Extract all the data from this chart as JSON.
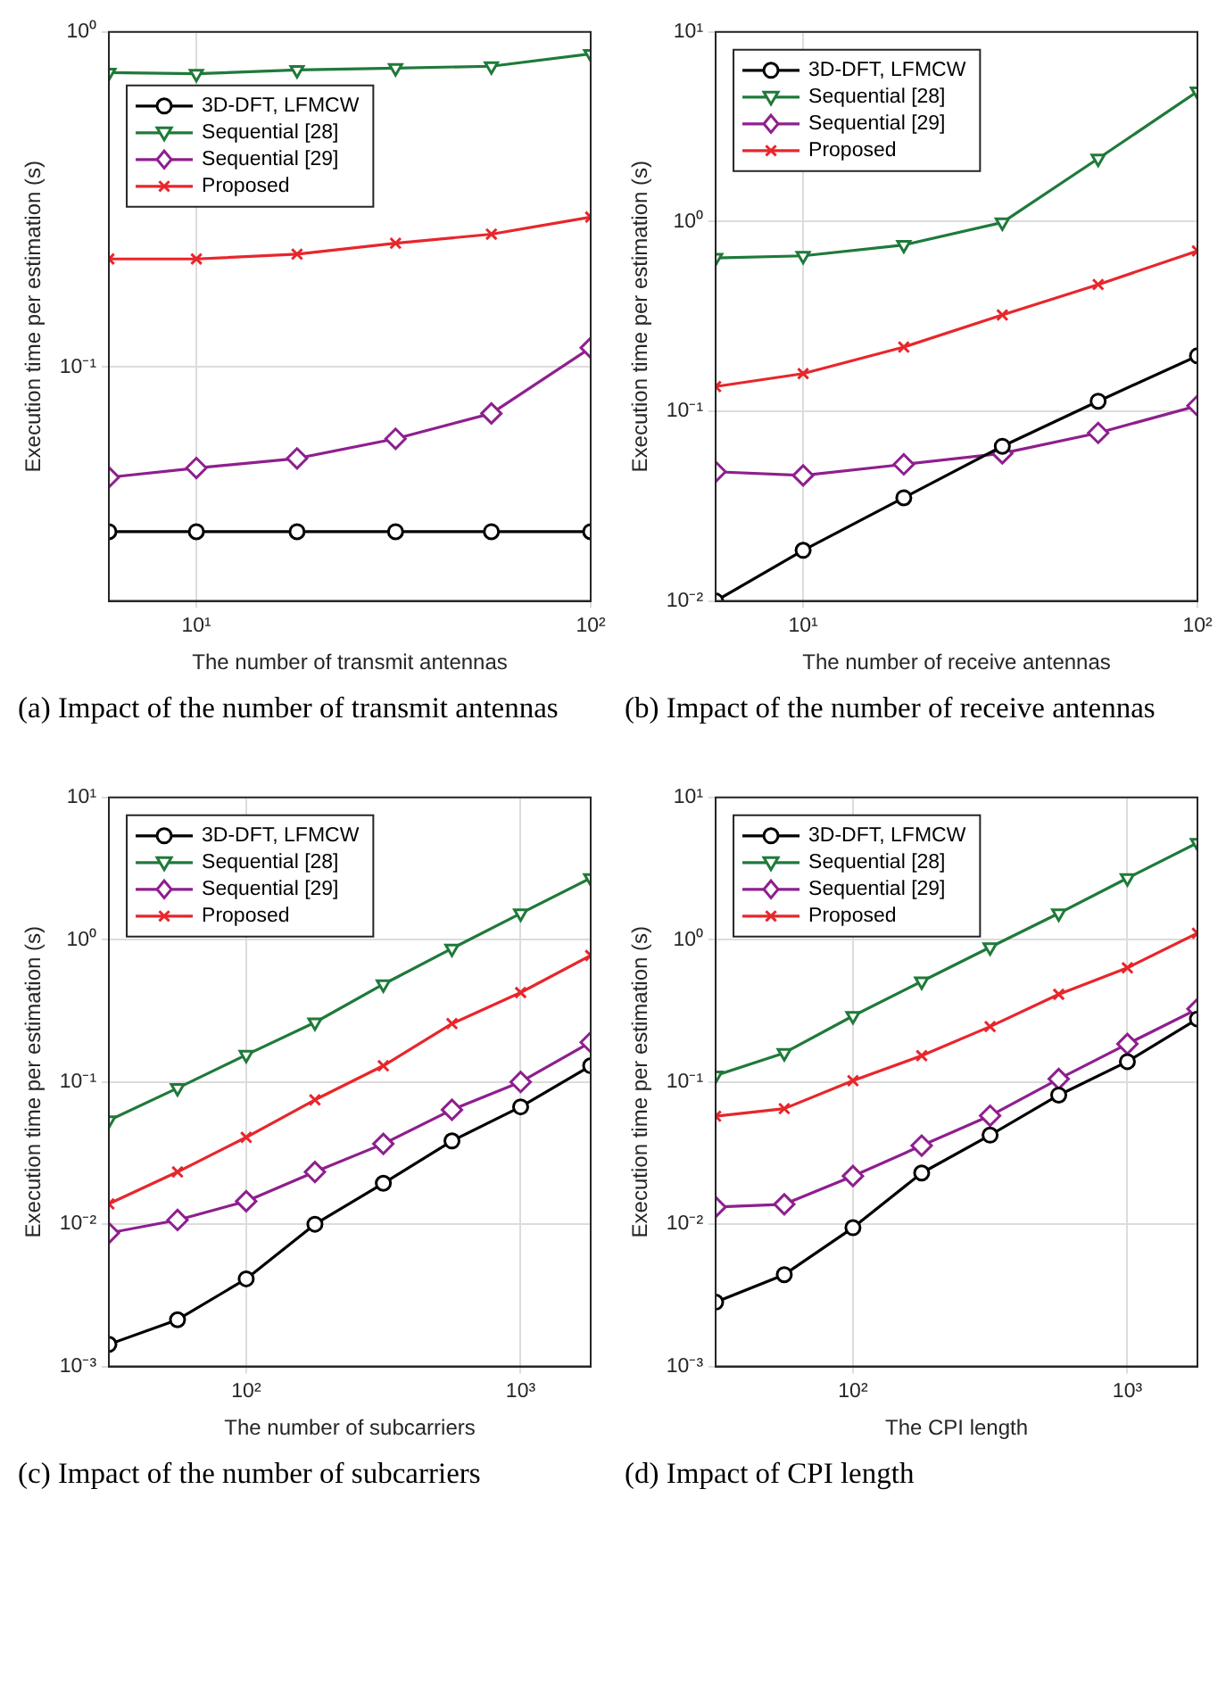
{
  "chart_data": [
    {
      "type": "line",
      "xlabel": "The number of transmit antennas",
      "ylabel": "Execution time per estimation (s)",
      "log": "xy",
      "grid": true,
      "legend": "top left",
      "xlim": [
        6,
        100
      ],
      "xticks": [
        {
          "value": 10,
          "label": "10¹"
        },
        {
          "value": 100,
          "label": "10²"
        }
      ],
      "ylim": [
        0.02,
        1
      ],
      "yticks": [
        {
          "value": 0.1,
          "label": "10⁻¹"
        },
        {
          "value": 1,
          "label": "10⁰"
        }
      ],
      "x": [
        6,
        10,
        18,
        32,
        56,
        100
      ],
      "annotations": [
        "(a) Impact of the number of transmit antennas"
      ],
      "series": [
        {
          "name": "3D-DFT, LFMCW",
          "color": "#000000",
          "marker": "circle",
          "values": [
            0.0322,
            0.0322,
            0.0322,
            0.0322,
            0.0322,
            0.0322
          ]
        },
        {
          "name": "Sequential [28]",
          "color": "#1f7a3a",
          "marker": "triangle",
          "values": [
            0.756,
            0.75,
            0.77,
            0.78,
            0.79,
            0.86
          ]
        },
        {
          "name": "Sequential [29]",
          "color": "#8e1f8e",
          "marker": "diamond",
          "values": [
            0.0468,
            0.0499,
            0.0533,
            0.061,
            0.0726,
            0.114
          ]
        },
        {
          "name": "Proposed",
          "color": "#e8262b",
          "marker": "cross",
          "values": [
            0.21,
            0.21,
            0.217,
            0.234,
            0.249,
            0.28
          ]
        }
      ]
    },
    {
      "type": "line",
      "xlabel": "The number of receive antennas",
      "ylabel": "Execution time per estimation (s)",
      "log": "xy",
      "grid": true,
      "legend": "top left",
      "xlim": [
        6,
        100
      ],
      "xticks": [
        {
          "value": 10,
          "label": "10¹"
        },
        {
          "value": 100,
          "label": "10²"
        }
      ],
      "ylim": [
        0.01,
        10
      ],
      "yticks": [
        {
          "value": 0.01,
          "label": "10⁻²"
        },
        {
          "value": 0.1,
          "label": "10⁻¹"
        },
        {
          "value": 1,
          "label": "10⁰"
        },
        {
          "value": 10,
          "label": "10¹"
        }
      ],
      "x": [
        6,
        10,
        18,
        32,
        56,
        100
      ],
      "annotations": [
        "(b) Impact of the number of receive antennas"
      ],
      "series": [
        {
          "name": "3D-DFT, LFMCW",
          "color": "#000000",
          "marker": "circle",
          "values": [
            0.01,
            0.0185,
            0.035,
            0.0654,
            0.113,
            0.196
          ]
        },
        {
          "name": "Sequential [28]",
          "color": "#1f7a3a",
          "marker": "triangle",
          "values": [
            0.644,
            0.66,
            0.753,
            0.99,
            2.15,
            4.85
          ]
        },
        {
          "name": "Sequential [29]",
          "color": "#8e1f8e",
          "marker": "diamond",
          "values": [
            0.048,
            0.0459,
            0.0525,
            0.06,
            0.0769,
            0.107
          ]
        },
        {
          "name": "Proposed",
          "color": "#e8262b",
          "marker": "cross",
          "values": [
            0.135,
            0.158,
            0.218,
            0.322,
            0.466,
            0.7
          ]
        }
      ]
    },
    {
      "type": "line",
      "xlabel": "The number of subcarriers",
      "ylabel": "Execution time per estimation (s)",
      "log": "xy",
      "grid": true,
      "legend": "top left",
      "xlim": [
        31.6,
        1800
      ],
      "xticks": [
        {
          "value": 100,
          "label": "10²"
        },
        {
          "value": 1000,
          "label": "10³"
        }
      ],
      "ylim": [
        0.001,
        10
      ],
      "yticks": [
        {
          "value": 0.001,
          "label": "10⁻³"
        },
        {
          "value": 0.01,
          "label": "10⁻²"
        },
        {
          "value": 0.1,
          "label": "10⁻¹"
        },
        {
          "value": 1,
          "label": "10⁰"
        },
        {
          "value": 10,
          "label": "10¹"
        }
      ],
      "x": [
        31.6,
        56.2,
        100,
        178,
        316,
        562,
        1000,
        1800
      ],
      "annotations": [
        "(c) Impact of the number of subcarriers"
      ],
      "series": [
        {
          "name": "3D-DFT, LFMCW",
          "color": "#000000",
          "marker": "circle",
          "values": [
            0.00143,
            0.00213,
            0.00413,
            0.01,
            0.0194,
            0.0385,
            0.0668,
            0.13
          ]
        },
        {
          "name": "Sequential [28]",
          "color": "#1f7a3a",
          "marker": "triangle",
          "values": [
            0.0537,
            0.0905,
            0.155,
            0.262,
            0.486,
            0.867,
            1.53,
            2.71
          ]
        },
        {
          "name": "Sequential [29]",
          "color": "#8e1f8e",
          "marker": "diamond",
          "values": [
            0.00867,
            0.0107,
            0.0145,
            0.0233,
            0.0367,
            0.0637,
            0.1,
            0.19
          ]
        },
        {
          "name": "Proposed",
          "color": "#e8262b",
          "marker": "cross",
          "values": [
            0.0139,
            0.0233,
            0.0408,
            0.0748,
            0.13,
            0.257,
            0.425,
            0.774
          ]
        }
      ]
    },
    {
      "type": "line",
      "xlabel": "The CPI length",
      "ylabel": "Execution time per estimation (s)",
      "log": "xy",
      "grid": true,
      "legend": "top left",
      "xlim": [
        31.6,
        1800
      ],
      "xticks": [
        {
          "value": 100,
          "label": "10²"
        },
        {
          "value": 1000,
          "label": "10³"
        }
      ],
      "ylim": [
        0.001,
        10
      ],
      "yticks": [
        {
          "value": 0.001,
          "label": "10⁻³"
        },
        {
          "value": 0.01,
          "label": "10⁻²"
        },
        {
          "value": 0.1,
          "label": "10⁻¹"
        },
        {
          "value": 1,
          "label": "10⁰"
        },
        {
          "value": 10,
          "label": "10¹"
        }
      ],
      "x": [
        31.6,
        56.2,
        100,
        178,
        316,
        562,
        1000,
        1800
      ],
      "annotations": [
        "(d) Impact of CPI length"
      ],
      "series": [
        {
          "name": "3D-DFT, LFMCW",
          "color": "#000000",
          "marker": "circle",
          "values": [
            0.00283,
            0.00442,
            0.00945,
            0.0229,
            0.0423,
            0.0808,
            0.139,
            0.277
          ]
        },
        {
          "name": "Sequential [28]",
          "color": "#1f7a3a",
          "marker": "triangle",
          "values": [
            0.111,
            0.16,
            0.291,
            0.509,
            0.884,
            1.53,
            2.71,
            4.79
          ]
        },
        {
          "name": "Sequential [29]",
          "color": "#8e1f8e",
          "marker": "diamond",
          "values": [
            0.0132,
            0.0138,
            0.0218,
            0.0357,
            0.0579,
            0.105,
            0.185,
            0.326
          ]
        },
        {
          "name": "Proposed",
          "color": "#e8262b",
          "marker": "cross",
          "values": [
            0.0574,
            0.0649,
            0.102,
            0.153,
            0.245,
            0.413,
            0.634,
            1.11
          ]
        }
      ]
    }
  ]
}
